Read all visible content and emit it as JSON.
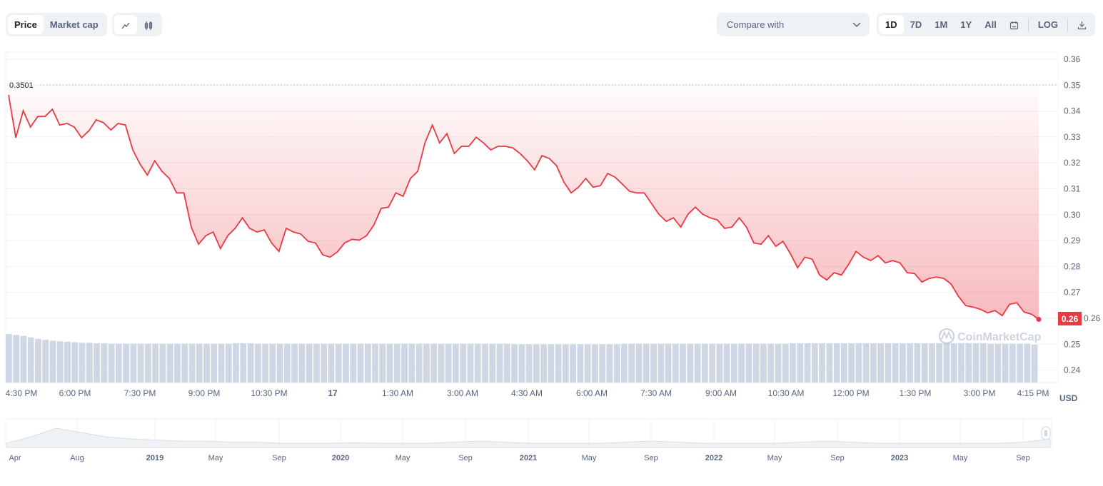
{
  "toolbar": {
    "price": "Price",
    "market_cap": "Market cap",
    "compare": "Compare with",
    "ranges": [
      "1D",
      "7D",
      "1M",
      "1Y",
      "All"
    ],
    "log": "LOG",
    "active_range": "1D"
  },
  "colors": {
    "line": "#ea3943",
    "volume": "#cfd6e4",
    "grid": "#eff2f5"
  },
  "chart_data": {
    "type": "line",
    "title": "",
    "currency": "USD",
    "ylim": [
      0.24,
      0.36
    ],
    "yticks": [
      "0.36",
      "0.35",
      "0.34",
      "0.33",
      "0.32",
      "0.31",
      "0.30",
      "0.29",
      "0.28",
      "0.27",
      "0.26",
      "0.25",
      "0.24"
    ],
    "xticks": [
      "4:30 PM",
      "6:00 PM",
      "7:30 PM",
      "9:00 PM",
      "10:30 PM",
      "17",
      "1:30 AM",
      "3:00 AM",
      "4:30 AM",
      "6:00 AM",
      "7:30 AM",
      "9:00 AM",
      "10:30 AM",
      "12:00 PM",
      "1:30 PM",
      "3:00 PM",
      "4:15 PM"
    ],
    "high_label": "0.3501",
    "high_value": 0.3501,
    "current_label": "0.26",
    "values": [
      0.3462,
      0.3297,
      0.3401,
      0.3338,
      0.3379,
      0.3379,
      0.3407,
      0.3346,
      0.3352,
      0.3338,
      0.3297,
      0.3324,
      0.3366,
      0.3355,
      0.3327,
      0.3352,
      0.3346,
      0.325,
      0.3195,
      0.3153,
      0.3208,
      0.3167,
      0.314,
      0.3084,
      0.3084,
      0.2952,
      0.2886,
      0.2919,
      0.2933,
      0.2869,
      0.2919,
      0.2947,
      0.2988,
      0.2947,
      0.2933,
      0.2941,
      0.2891,
      0.2858,
      0.2947,
      0.2933,
      0.2925,
      0.2897,
      0.2891,
      0.2845,
      0.2836,
      0.2856,
      0.2891,
      0.2905,
      0.2902,
      0.2919,
      0.296,
      0.3024,
      0.3029,
      0.3084,
      0.3071,
      0.314,
      0.3167,
      0.3277,
      0.3346,
      0.3277,
      0.3313,
      0.3236,
      0.3264,
      0.3264,
      0.3299,
      0.3277,
      0.325,
      0.3264,
      0.3264,
      0.3258,
      0.3236,
      0.3208,
      0.3173,
      0.3228,
      0.3217,
      0.3189,
      0.3126,
      0.3084,
      0.3106,
      0.314,
      0.3106,
      0.3112,
      0.3159,
      0.3145,
      0.3118,
      0.309,
      0.3084,
      0.3084,
      0.3043,
      0.3002,
      0.2974,
      0.2988,
      0.2952,
      0.3002,
      0.3029,
      0.3002,
      0.2988,
      0.298,
      0.2947,
      0.2952,
      0.2988,
      0.2952,
      0.2891,
      0.2886,
      0.2919,
      0.2878,
      0.2897,
      0.285,
      0.2795,
      0.2836,
      0.2828,
      0.2767,
      0.2748,
      0.2776,
      0.2767,
      0.2809,
      0.2858,
      0.2836,
      0.2823,
      0.2842,
      0.2814,
      0.2823,
      0.2814,
      0.2776,
      0.2773,
      0.274,
      0.2754,
      0.2759,
      0.2754,
      0.2732,
      0.2685,
      0.2649,
      0.2643,
      0.2635,
      0.2621,
      0.263,
      0.261,
      0.2654,
      0.266,
      0.2624,
      0.2616,
      0.2596
    ],
    "volume_relative": [
      1,
      0.98,
      0.96,
      0.93,
      0.9,
      0.88,
      0.86,
      0.85,
      0.84,
      0.83,
      0.82,
      0.82,
      0.81,
      0.81,
      0.8,
      0.8,
      0.8,
      0.8,
      0.8,
      0.8,
      0.8,
      0.8,
      0.8,
      0.8,
      0.8,
      0.8,
      0.8,
      0.8,
      0.8,
      0.8,
      0.8,
      0.81,
      0.81,
      0.81,
      0.8,
      0.8,
      0.8,
      0.8,
      0.8,
      0.8,
      0.8,
      0.8,
      0.8,
      0.8,
      0.8,
      0.8,
      0.8,
      0.8,
      0.8,
      0.8,
      0.8,
      0.8,
      0.8,
      0.8,
      0.8,
      0.8,
      0.8,
      0.8,
      0.8,
      0.8,
      0.8,
      0.8,
      0.8,
      0.8,
      0.8,
      0.8,
      0.8,
      0.8,
      0.8,
      0.79,
      0.79,
      0.79,
      0.79,
      0.79,
      0.79,
      0.79,
      0.79,
      0.79,
      0.79,
      0.79,
      0.79,
      0.79,
      0.79,
      0.79,
      0.8,
      0.8,
      0.8,
      0.8,
      0.8,
      0.8,
      0.8,
      0.8,
      0.8,
      0.8,
      0.8,
      0.8,
      0.8,
      0.8,
      0.8,
      0.8,
      0.8,
      0.8,
      0.8,
      0.8,
      0.8,
      0.8,
      0.8,
      0.81,
      0.81,
      0.81,
      0.81,
      0.81,
      0.81,
      0.81,
      0.81,
      0.81,
      0.81,
      0.81,
      0.81,
      0.81,
      0.81,
      0.81,
      0.81,
      0.81,
      0.81,
      0.81,
      0.81,
      0.81,
      0.81,
      0.81,
      0.81,
      0.81,
      0.81,
      0.81,
      0.8,
      0.8,
      0.8,
      0.8,
      0.8,
      0.8,
      0.78
    ]
  },
  "navigator": {
    "labels": [
      "Apr",
      "Aug",
      "2019",
      "May",
      "Sep",
      "2020",
      "May",
      "Sep",
      "2021",
      "May",
      "Sep",
      "2022",
      "May",
      "Sep",
      "2023",
      "May",
      "Sep"
    ],
    "bold": [
      false,
      false,
      true,
      false,
      false,
      true,
      false,
      false,
      true,
      false,
      false,
      true,
      false,
      false,
      true,
      false,
      false
    ],
    "values": [
      0.2,
      0.5,
      0.9,
      0.7,
      0.5,
      0.4,
      0.35,
      0.3,
      0.3,
      0.25,
      0.25,
      0.2,
      0.2,
      0.2,
      0.22,
      0.2,
      0.2,
      0.2,
      0.25,
      0.3,
      0.25,
      0.2,
      0.2,
      0.2,
      0.2,
      0.25,
      0.3,
      0.25,
      0.2,
      0.2,
      0.2,
      0.2,
      0.25,
      0.3,
      0.25,
      0.2,
      0.2,
      0.2,
      0.2,
      0.2,
      0.2,
      0.25,
      0.4
    ]
  },
  "watermark": "CoinMarketCap"
}
